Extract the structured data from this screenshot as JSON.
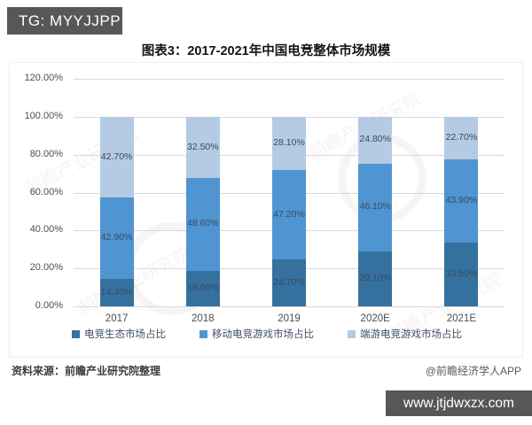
{
  "header": {
    "tg_badge": "TG: MYYJJPP"
  },
  "title": "图表3：2017-2021年中国电竞整体市场规模",
  "chart_data": {
    "type": "bar",
    "stacked": true,
    "percent_stacked": true,
    "title": "图表3：2017-2021年中国电竞整体市场规模",
    "categories": [
      "2017",
      "2018",
      "2019",
      "2020E",
      "2021E"
    ],
    "series": [
      {
        "name": "电竞生态市场占比",
        "color": "#35719f",
        "values": [
          14.4,
          18.9,
          24.7,
          29.1,
          33.5
        ]
      },
      {
        "name": "移动电竞游戏市场占比",
        "color": "#4e95d1",
        "values": [
          42.9,
          48.6,
          47.2,
          46.1,
          43.9
        ]
      },
      {
        "name": "端游电竞游戏市场占比",
        "color": "#b5cae3",
        "values": [
          42.7,
          32.5,
          28.1,
          24.8,
          22.7
        ]
      }
    ],
    "data_labels": [
      [
        "14.40%",
        "18.90%",
        "24.70%",
        "29.10%",
        "33.50%"
      ],
      [
        "42.90%",
        "48.60%",
        "47.20%",
        "46.10%",
        "43.90%"
      ],
      [
        "42.70%",
        "32.50%",
        "28.10%",
        "24.80%",
        "22.70%"
      ]
    ],
    "y_ticks": [
      {
        "value": 0,
        "label": "0.00%"
      },
      {
        "value": 20,
        "label": "20.00%"
      },
      {
        "value": 40,
        "label": "40.00%"
      },
      {
        "value": 60,
        "label": "60.00%"
      },
      {
        "value": 80,
        "label": "80.00%"
      },
      {
        "value": 100,
        "label": "100.00%"
      },
      {
        "value": 120,
        "label": "120.00%"
      }
    ],
    "ylim": [
      0,
      120
    ],
    "grid": true,
    "legend_position": "bottom"
  },
  "watermark": {
    "text": "前瞻产业研究院"
  },
  "footer": {
    "source": "资料来源：前瞻产业研究院整理",
    "credit": "@前瞻经济学人APP",
    "website": "www.jtjdwxzx.com"
  },
  "colors": {
    "badge_bg": "#575757",
    "grid_line": "#d9d9d9",
    "label_text": "#3a4a5e"
  }
}
